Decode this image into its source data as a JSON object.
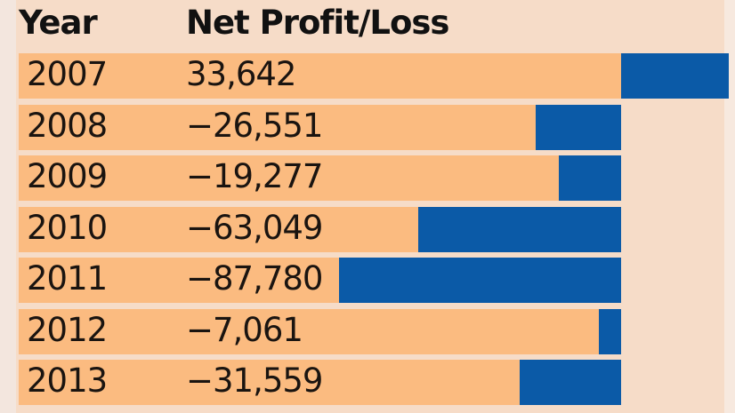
{
  "table": {
    "header_year": "Year",
    "header_value": "Net Profit/Loss"
  },
  "colors": {
    "background": "#f6dcc8",
    "row": "#fbbb80",
    "bar": "#0b5aa7",
    "text": "#1a1410"
  },
  "chart_data": {
    "type": "bar",
    "orientation": "horizontal",
    "title": "",
    "xlabel": "Net Profit/Loss",
    "ylabel": "Year",
    "categories": [
      "2007",
      "2008",
      "2009",
      "2010",
      "2011",
      "2012",
      "2013"
    ],
    "values": [
      33642,
      -26551,
      -19277,
      -63049,
      -87780,
      -7061,
      -31559
    ],
    "labels": [
      "33,642",
      "−26,551",
      "−19,277",
      "−63,049",
      "−87,780",
      "−7,061",
      "−31,559"
    ],
    "xlim": [
      -87780,
      33642
    ],
    "grid": false,
    "legend": "none"
  }
}
